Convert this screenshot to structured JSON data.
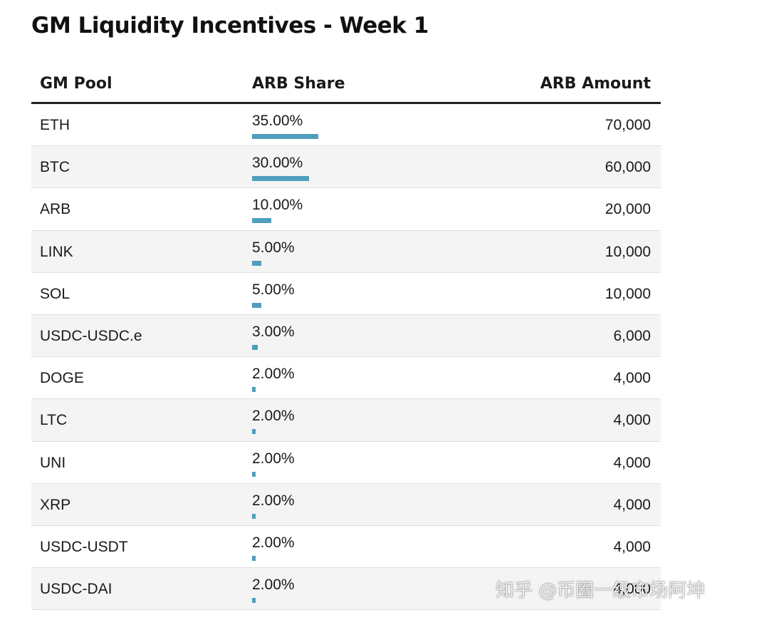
{
  "title": "GM Liquidity Incentives - Week 1",
  "watermark": "知乎 @币圈一级市场阿坤",
  "colors": {
    "bar": "#4f9ebd",
    "row_alt": "#f4f4f4",
    "header_rule": "#222222"
  },
  "chart_data": {
    "type": "table",
    "title": "GM Liquidity Incentives - Week 1",
    "columns": [
      "GM Pool",
      "ARB Share",
      "ARB Amount"
    ],
    "rows": [
      {
        "pool": "ETH",
        "share_label": "35.00%",
        "share": 35.0,
        "amount_label": "70,000",
        "amount": 70000
      },
      {
        "pool": "BTC",
        "share_label": "30.00%",
        "share": 30.0,
        "amount_label": "60,000",
        "amount": 60000
      },
      {
        "pool": "ARB",
        "share_label": "10.00%",
        "share": 10.0,
        "amount_label": "20,000",
        "amount": 20000
      },
      {
        "pool": "LINK",
        "share_label": "5.00%",
        "share": 5.0,
        "amount_label": "10,000",
        "amount": 10000
      },
      {
        "pool": "SOL",
        "share_label": "5.00%",
        "share": 5.0,
        "amount_label": "10,000",
        "amount": 10000
      },
      {
        "pool": "USDC-USDC.e",
        "share_label": "3.00%",
        "share": 3.0,
        "amount_label": "6,000",
        "amount": 6000
      },
      {
        "pool": "DOGE",
        "share_label": "2.00%",
        "share": 2.0,
        "amount_label": "4,000",
        "amount": 4000
      },
      {
        "pool": "LTC",
        "share_label": "2.00%",
        "share": 2.0,
        "amount_label": "4,000",
        "amount": 4000
      },
      {
        "pool": "UNI",
        "share_label": "2.00%",
        "share": 2.0,
        "amount_label": "4,000",
        "amount": 4000
      },
      {
        "pool": "XRP",
        "share_label": "2.00%",
        "share": 2.0,
        "amount_label": "4,000",
        "amount": 4000
      },
      {
        "pool": "USDC-USDT",
        "share_label": "2.00%",
        "share": 2.0,
        "amount_label": "4,000",
        "amount": 4000
      },
      {
        "pool": "USDC-DAI",
        "share_label": "2.00%",
        "share": 2.0,
        "amount_label": "4,000",
        "amount": 4000
      }
    ]
  }
}
